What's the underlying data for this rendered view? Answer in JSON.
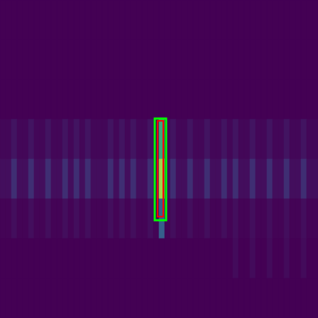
{
  "chart_data": {
    "type": "heatmap",
    "tick_labels": false,
    "xlim": [
      0,
      56
    ],
    "ylim": [
      0,
      8
    ],
    "color_range": [
      0,
      1
    ],
    "cells": [
      [
        0,
        0,
        0,
        0,
        0,
        0,
        0,
        0,
        0,
        0,
        0,
        0,
        0,
        0,
        0,
        0,
        0,
        0,
        0,
        0,
        0,
        0,
        0,
        0,
        0,
        0,
        0,
        0,
        0,
        0,
        0,
        0,
        0,
        0,
        0,
        0,
        0,
        0,
        0,
        0,
        0,
        0,
        0,
        0,
        0,
        0,
        0,
        0,
        0,
        0,
        0,
        0,
        0,
        0,
        0,
        0
      ],
      [
        0,
        0,
        0,
        0,
        0,
        0,
        0,
        0,
        0,
        0,
        0,
        0,
        0,
        0,
        0,
        0,
        0,
        0,
        0,
        0,
        0,
        0,
        0,
        0,
        0,
        0,
        0,
        0,
        0,
        0,
        0,
        0,
        0,
        0,
        0,
        0,
        0,
        0,
        0,
        0,
        0,
        0,
        0,
        0,
        0,
        0,
        0,
        0,
        0,
        0,
        0,
        0,
        0,
        0,
        0,
        0
      ],
      [
        0,
        0,
        0,
        0,
        0,
        0,
        0,
        0,
        0,
        0,
        0,
        0,
        0,
        0,
        0,
        0,
        0,
        0,
        0,
        0,
        0,
        0,
        0,
        0,
        0,
        0,
        0,
        0,
        0,
        0,
        0,
        0,
        0,
        0,
        0,
        0,
        0,
        0,
        0,
        0,
        0,
        0,
        0,
        0,
        0,
        0,
        0,
        0,
        0,
        0,
        0,
        0,
        0,
        0,
        0,
        0
      ],
      [
        0.02,
        0.02,
        0.06,
        0.02,
        0.02,
        0.06,
        0.02,
        0.02,
        0.06,
        0.02,
        0.02,
        0.06,
        0.02,
        0.06,
        0.02,
        0.06,
        0.02,
        0.02,
        0.02,
        0.06,
        0.02,
        0.06,
        0.02,
        0.06,
        0.02,
        0.02,
        0.06,
        0.02,
        0.6,
        0.02,
        0.06,
        0.02,
        0.02,
        0.06,
        0.02,
        0.02,
        0.06,
        0.02,
        0.02,
        0.06,
        0.02,
        0.06,
        0.02,
        0.02,
        0.06,
        0.02,
        0.02,
        0.06,
        0.02,
        0.02,
        0.06,
        0.02,
        0.02,
        0.06,
        0.02,
        0.02
      ],
      [
        0.04,
        0.04,
        0.14,
        0.04,
        0.04,
        0.14,
        0.04,
        0.04,
        0.14,
        0.04,
        0.04,
        0.14,
        0.04,
        0.14,
        0.04,
        0.14,
        0.04,
        0.04,
        0.04,
        0.14,
        0.04,
        0.14,
        0.04,
        0.14,
        0.04,
        0.04,
        0.14,
        0.04,
        0.85,
        0.04,
        0.14,
        0.04,
        0.04,
        0.14,
        0.04,
        0.04,
        0.14,
        0.04,
        0.04,
        0.14,
        0.04,
        0.14,
        0.04,
        0.04,
        0.14,
        0.04,
        0.04,
        0.14,
        0.04,
        0.04,
        0.14,
        0.04,
        0.04,
        0.14,
        0.04,
        0.04
      ],
      [
        0.01,
        0.01,
        0.04,
        0.01,
        0.01,
        0.04,
        0.01,
        0.01,
        0.04,
        0.01,
        0.01,
        0.04,
        0.01,
        0.04,
        0.01,
        0.04,
        0.01,
        0.01,
        0.01,
        0.04,
        0.01,
        0.04,
        0.01,
        0.04,
        0.01,
        0.01,
        0.04,
        0.01,
        0.3,
        0.01,
        0.04,
        0.01,
        0.01,
        0.04,
        0.01,
        0.01,
        0.04,
        0.01,
        0.01,
        0.04,
        0.01,
        0.04,
        0.01,
        0.01,
        0.04,
        0.01,
        0.01,
        0.04,
        0.01,
        0.01,
        0.04,
        0.01,
        0.01,
        0.04,
        0.01,
        0.01
      ],
      [
        0,
        0,
        0,
        0,
        0,
        0,
        0,
        0,
        0,
        0,
        0,
        0,
        0,
        0,
        0,
        0,
        0,
        0,
        0,
        0,
        0,
        0,
        0,
        0,
        0,
        0,
        0,
        0,
        0,
        0,
        0,
        0,
        0,
        0,
        0,
        0,
        0,
        0,
        0,
        0,
        0,
        0.03,
        0,
        0,
        0.03,
        0,
        0,
        0.03,
        0,
        0,
        0.03,
        0,
        0,
        0.03,
        0,
        0
      ],
      [
        0,
        0,
        0,
        0,
        0,
        0,
        0,
        0,
        0,
        0,
        0,
        0,
        0,
        0,
        0,
        0,
        0,
        0,
        0,
        0,
        0,
        0,
        0,
        0,
        0,
        0,
        0,
        0,
        0,
        0,
        0,
        0,
        0,
        0,
        0,
        0,
        0,
        0,
        0,
        0,
        0,
        0,
        0,
        0,
        0,
        0,
        0,
        0,
        0,
        0,
        0,
        0,
        0,
        0,
        0,
        0
      ]
    ],
    "annotations": [
      {
        "type": "box",
        "x": [
          27.25,
          29.25
        ],
        "y": [
          2.98,
          5.54
        ],
        "color": "#00ff00"
      },
      {
        "type": "box",
        "x": [
          27.75,
          28.75
        ],
        "y": [
          3.04,
          5.45
        ],
        "color": "#ff0000"
      }
    ]
  }
}
